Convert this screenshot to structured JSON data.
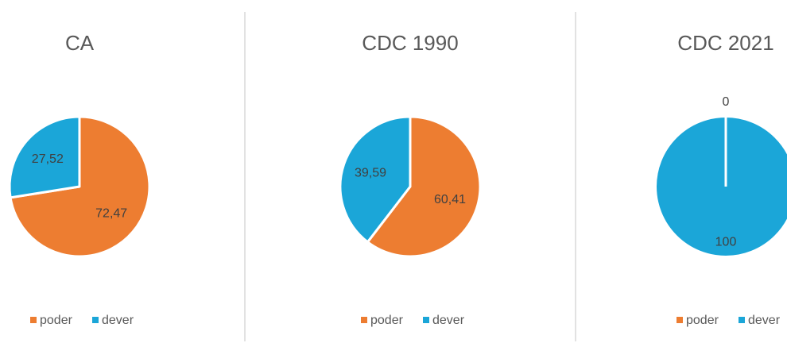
{
  "chart_data": [
    {
      "type": "pie",
      "title": "CA",
      "categories": [
        "poder",
        "dever"
      ],
      "values": [
        72.47,
        27.52
      ],
      "value_labels": [
        "72,47",
        "27,52"
      ],
      "colors": [
        "#ed7d31",
        "#1ba6d8"
      ]
    },
    {
      "type": "pie",
      "title": "CDC 1990",
      "categories": [
        "poder",
        "dever"
      ],
      "values": [
        60.41,
        39.59
      ],
      "value_labels": [
        "60,41",
        "39,59"
      ],
      "colors": [
        "#ed7d31",
        "#1ba6d8"
      ]
    },
    {
      "type": "pie",
      "title": "CDC 2021",
      "categories": [
        "poder",
        "dever"
      ],
      "values": [
        0,
        100
      ],
      "value_labels": [
        "0",
        "100"
      ],
      "colors": [
        "#ed7d31",
        "#1ba6d8"
      ]
    }
  ]
}
